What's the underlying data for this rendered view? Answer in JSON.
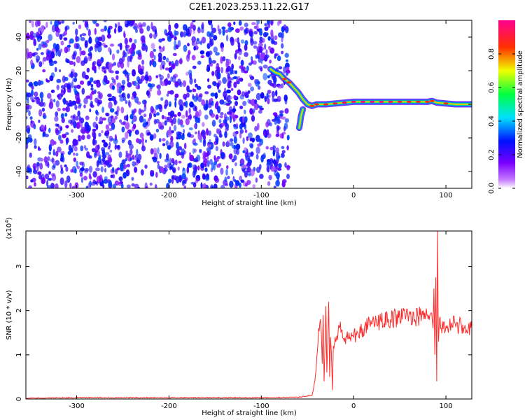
{
  "figure_title": "C2E1.2023.253.11.22.G17",
  "chart_data": [
    {
      "type": "heatmap",
      "xlabel": "Height of straight line (km)",
      "ylabel": "Frequency (Hz)",
      "xlim": [
        -355,
        128
      ],
      "ylim": [
        -50,
        50
      ],
      "x_ticks": [
        -300,
        -200,
        -100,
        0,
        100
      ],
      "x_tick_labels": [
        "-300",
        "-200",
        "-100",
        "0",
        "100"
      ],
      "y_ticks": [
        -40,
        -20,
        0,
        20,
        40
      ],
      "y_tick_labels": [
        "-40",
        "-20",
        "0",
        "20",
        "40"
      ],
      "grid": false,
      "colorbar": {
        "label": "Normalized spectral amplitude",
        "range": [
          0,
          1
        ],
        "ticks": [
          0.0,
          0.2,
          0.4,
          0.6,
          0.8
        ],
        "tick_labels": [
          "0.0",
          "0.2",
          "0.4",
          "0.6",
          "0.8"
        ],
        "colors": [
          "#ffffff",
          "#7a00ff",
          "#0010ff",
          "#00e0ff",
          "#00ff40",
          "#f0ff00",
          "#ff3000",
          "#ff0090"
        ]
      },
      "noise_region_x": [
        -355,
        -75
      ],
      "signal_track": [
        {
          "x": -90,
          "y": 21,
          "amp": 0.45
        },
        {
          "x": -85,
          "y": 19,
          "amp": 0.5
        },
        {
          "x": -80,
          "y": 18,
          "amp": 0.55
        },
        {
          "x": -75,
          "y": 15,
          "amp": 0.6
        },
        {
          "x": -70,
          "y": 13,
          "amp": 0.6
        },
        {
          "x": -65,
          "y": 10,
          "amp": 0.55
        },
        {
          "x": -60,
          "y": 7,
          "amp": 0.5
        },
        {
          "x": -55,
          "y": 3,
          "amp": 0.5
        },
        {
          "x": -50,
          "y": 0,
          "amp": 0.55
        },
        {
          "x": -45,
          "y": -1,
          "amp": 0.6
        },
        {
          "x": -40,
          "y": 0,
          "amp": 0.65
        },
        {
          "x": -30,
          "y": 0,
          "amp": 0.7
        },
        {
          "x": -20,
          "y": 0.5,
          "amp": 0.75
        },
        {
          "x": -10,
          "y": 1,
          "amp": 0.8
        },
        {
          "x": 0,
          "y": 1.5,
          "amp": 0.85
        },
        {
          "x": 10,
          "y": 1.5,
          "amp": 0.9
        },
        {
          "x": 20,
          "y": 1.5,
          "amp": 0.95
        },
        {
          "x": 30,
          "y": 1.5,
          "amp": 0.85
        },
        {
          "x": 40,
          "y": 1.5,
          "amp": 0.8
        },
        {
          "x": 50,
          "y": 1.5,
          "amp": 0.75
        },
        {
          "x": 60,
          "y": 1.5,
          "amp": 0.7
        },
        {
          "x": 70,
          "y": 1.5,
          "amp": 0.7
        },
        {
          "x": 80,
          "y": 1.5,
          "amp": 0.65
        },
        {
          "x": 85,
          "y": 2,
          "amp": 0.6
        },
        {
          "x": 90,
          "y": 1,
          "amp": 0.55
        },
        {
          "x": 100,
          "y": 0.5,
          "amp": 0.6
        },
        {
          "x": 110,
          "y": 0,
          "amp": 0.55
        },
        {
          "x": 120,
          "y": 0,
          "amp": 0.5
        },
        {
          "x": 128,
          "y": 0,
          "amp": 0.45
        }
      ],
      "signal_branch": [
        {
          "x": -55,
          "y": -3,
          "amp": 0.5
        },
        {
          "x": -57,
          "y": -7,
          "amp": 0.45
        },
        {
          "x": -58,
          "y": -11,
          "amp": 0.4
        },
        {
          "x": -59,
          "y": -14,
          "amp": 0.35
        }
      ]
    },
    {
      "type": "line",
      "xlabel": "Height of straight line (km)",
      "ylabel": "SNR (10 * v/v)",
      "y_scale_label": "(x10",
      "y_scale_exp": "4",
      "y_scale_close": ")",
      "y_multiplier": 10000,
      "xlim": [
        -355,
        128
      ],
      "ylim": [
        0,
        3.8
      ],
      "x_ticks": [
        -300,
        -200,
        -100,
        0,
        100
      ],
      "x_tick_labels": [
        "-300",
        "-200",
        "-100",
        "0",
        "100"
      ],
      "y_ticks": [
        0,
        1,
        2,
        3
      ],
      "y_tick_labels": [
        "0",
        "1",
        "2",
        "3"
      ],
      "grid": false,
      "color": "#ff2a2a",
      "series": [
        {
          "x": [
            -355,
            -300,
            -250,
            -200,
            -150,
            -100,
            -60,
            -45,
            -42,
            -40,
            -38,
            -36,
            -35,
            -34,
            -33,
            -32,
            -31,
            -30,
            -29,
            -28,
            -27,
            -26,
            -25,
            -24,
            -23,
            -22,
            -20,
            -15,
            -10,
            -5,
            0,
            10,
            20,
            30,
            40,
            50,
            60,
            70,
            75,
            80,
            84,
            86,
            87,
            88,
            89,
            90,
            90.5,
            91,
            91.5,
            92,
            93,
            95,
            100,
            110,
            120,
            128
          ],
          "y": [
            0.02,
            0.03,
            0.03,
            0.03,
            0.03,
            0.03,
            0.04,
            0.08,
            0.4,
            0.9,
            1.6,
            1.8,
            1.5,
            0.8,
            1.9,
            0.4,
            1.2,
            2.1,
            0.6,
            1.3,
            2.2,
            0.5,
            1.4,
            1.0,
            0.2,
            1.2,
            1.4,
            1.6,
            1.3,
            1.5,
            1.4,
            1.6,
            1.7,
            1.75,
            1.8,
            1.85,
            1.9,
            1.85,
            1.9,
            1.9,
            1.95,
            1.6,
            2.5,
            1.0,
            2.75,
            0.4,
            2.2,
            3.8,
            1.9,
            1.3,
            1.8,
            1.6,
            1.65,
            1.7,
            1.6,
            1.6
          ]
        }
      ]
    }
  ]
}
